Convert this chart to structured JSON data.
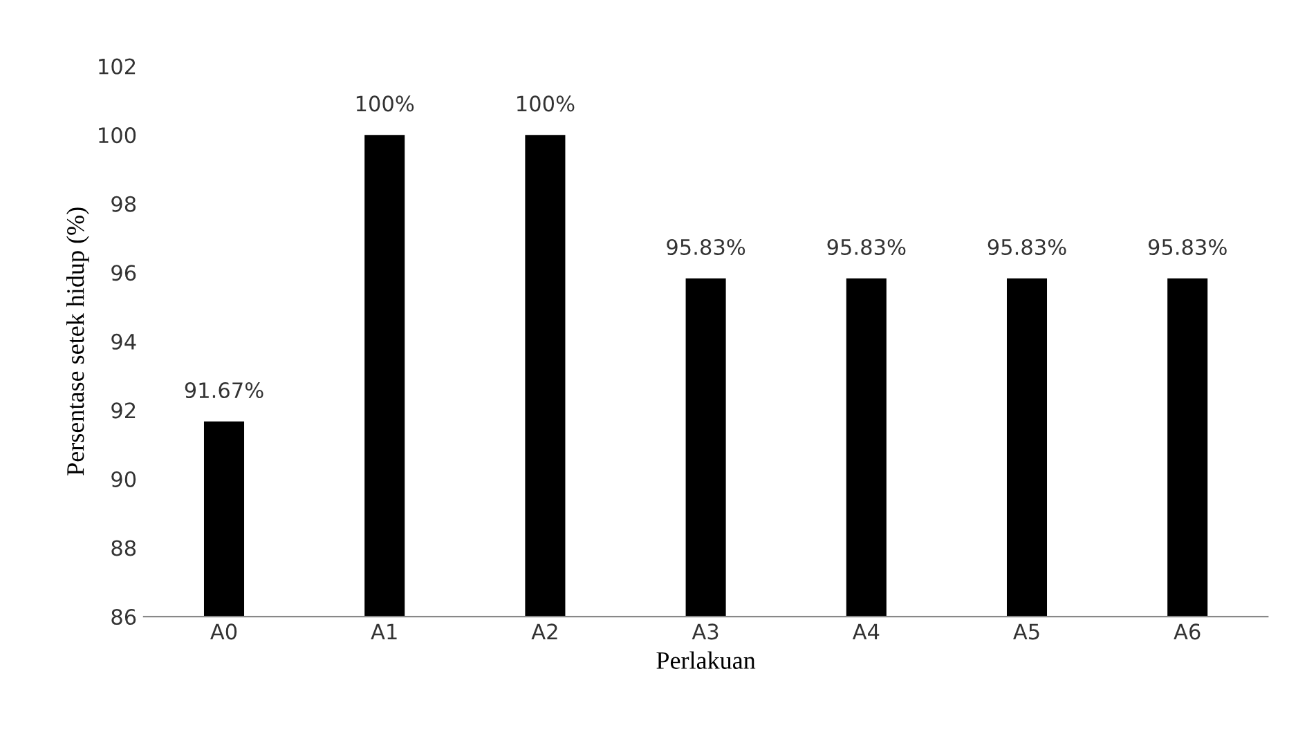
{
  "chart_data": {
    "type": "bar",
    "xlabel": "Perlakuan",
    "ylabel": "Persentase setek hidup (%)",
    "categories": [
      "A0",
      "A1",
      "A2",
      "A3",
      "A4",
      "A5",
      "A6"
    ],
    "values": [
      91.67,
      100,
      100,
      95.83,
      95.83,
      95.83,
      95.83
    ],
    "value_labels": [
      "91.67%",
      "100%",
      "100%",
      "95.83%",
      "95.83%",
      "95.83%",
      "95.83%"
    ],
    "color": "#000000",
    "ylim": [
      86,
      102
    ],
    "yticks": [
      86,
      88,
      90,
      92,
      94,
      96,
      98,
      100,
      102
    ],
    "grid": false,
    "legend": false
  }
}
